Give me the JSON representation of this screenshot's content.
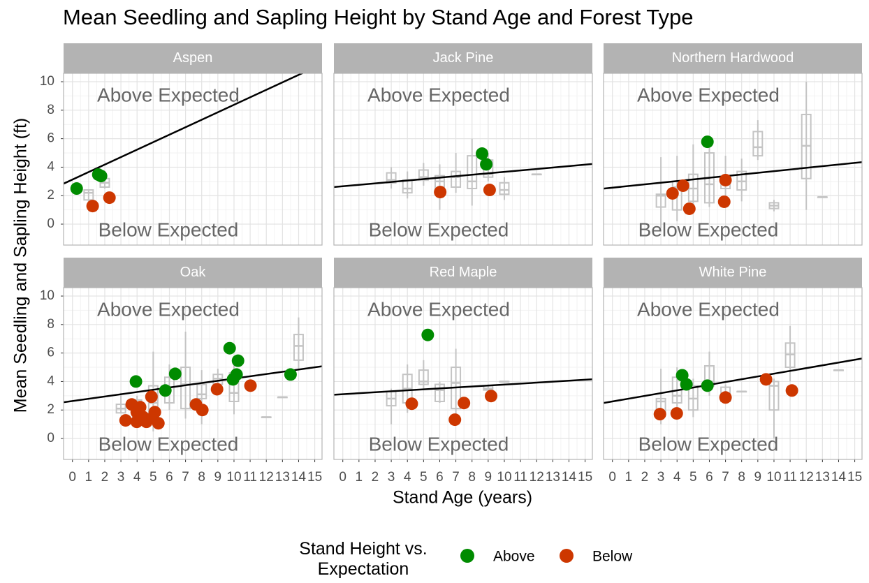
{
  "title": "Mean Seedling and Sapling Height by Stand Age and Forest Type",
  "x_label": "Stand Age (years)",
  "y_label": "Mean Seedling and Sapling Height (ft)",
  "legend_title": "Stand Height vs. Expectation",
  "chart_data": [
    {
      "type": "scatter",
      "title": "Aspen",
      "xlim": [
        -0.55,
        15.45
      ],
      "ylim": [
        -1.47,
        10.59
      ],
      "xticks": [
        0,
        1,
        2,
        3,
        4,
        5,
        6,
        7,
        8,
        9,
        10,
        11,
        12,
        13,
        14,
        15
      ],
      "yticks": [
        0,
        2,
        4,
        6,
        8,
        10
      ],
      "grid": true,
      "annotations": [
        "Above Expected",
        "Below Expected"
      ],
      "trend": {
        "intercept": 3.13,
        "slope": 0.525
      },
      "boxes": {
        "x": [
          1,
          2
        ],
        "low": [
          1.5,
          2.5
        ],
        "q1": [
          1.7,
          2.6
        ],
        "median": [
          2.2,
          2.9
        ],
        "q3": [
          2.4,
          3.2
        ],
        "high": [
          2.4,
          3.3
        ]
      },
      "series": [
        {
          "name": "Above",
          "color": "#008b00",
          "x": [
            0.26,
            1.6,
            1.77
          ],
          "values": [
            2.5,
            3.48,
            3.38
          ]
        },
        {
          "name": "Below",
          "color": "#cd3700",
          "x": [
            1.25,
            2.29
          ],
          "values": [
            1.27,
            1.86
          ]
        }
      ]
    },
    {
      "type": "scatter",
      "title": "Jack Pine",
      "xlim": [
        -0.55,
        15.45
      ],
      "ylim": [
        -1.47,
        10.59
      ],
      "xticks": [
        0,
        1,
        2,
        3,
        4,
        5,
        6,
        7,
        8,
        9,
        10,
        11,
        12,
        13,
        14,
        15
      ],
      "yticks": [
        0,
        2,
        4,
        6,
        8,
        10
      ],
      "grid": true,
      "annotations": [
        "Above Expected",
        "Below Expected"
      ],
      "trend": {
        "intercept": 2.66,
        "slope": 0.101
      },
      "boxes": {
        "x": [
          3,
          4,
          5,
          6,
          7,
          8,
          9,
          10,
          12
        ],
        "low": [
          2.5,
          1.8,
          2.7,
          1.0,
          2.2,
          1.3,
          3.0,
          1.7,
          3.5
        ],
        "q1": [
          2.9,
          2.2,
          3.1,
          2.5,
          2.6,
          2.5,
          3.3,
          2.1,
          3.5
        ],
        "median": [
          3.1,
          2.5,
          3.3,
          3.0,
          3.3,
          3.0,
          3.5,
          2.4,
          3.5
        ],
        "q3": [
          3.6,
          3.1,
          3.8,
          3.4,
          3.7,
          4.8,
          4.5,
          2.9,
          3.5
        ],
        "high": [
          4.0,
          3.7,
          4.3,
          4.2,
          5.0,
          6.0,
          5.0,
          3.3,
          3.5
        ]
      },
      "series": [
        {
          "name": "Above",
          "color": "#008b00",
          "x": [
            8.62,
            8.88
          ],
          "values": [
            4.95,
            4.2
          ]
        },
        {
          "name": "Below",
          "color": "#cd3700",
          "x": [
            6.03,
            9.09
          ],
          "values": [
            2.25,
            2.4
          ]
        }
      ]
    },
    {
      "type": "scatter",
      "title": "Northern Hardwood",
      "xlim": [
        -0.55,
        15.45
      ],
      "ylim": [
        -1.47,
        10.59
      ],
      "xticks": [
        0,
        1,
        2,
        3,
        4,
        5,
        6,
        7,
        8,
        9,
        10,
        11,
        12,
        13,
        14,
        15
      ],
      "yticks": [
        0,
        2,
        4,
        6,
        8,
        10
      ],
      "grid": true,
      "annotations": [
        "Above Expected",
        "Below Expected"
      ],
      "trend": {
        "intercept": 2.56,
        "slope": 0.116
      },
      "boxes": {
        "x": [
          3,
          4,
          5,
          6,
          7,
          8,
          9,
          10,
          12,
          13
        ],
        "low": [
          -0.3,
          0.2,
          0.8,
          1.2,
          2.0,
          1.6,
          4.5,
          0.9,
          1.0,
          1.9
        ],
        "q1": [
          1.2,
          1.0,
          1.6,
          1.5,
          2.5,
          2.4,
          4.8,
          1.1,
          3.2,
          1.9
        ],
        "median": [
          2.0,
          2.6,
          2.5,
          2.8,
          2.9,
          3.0,
          5.4,
          1.3,
          5.5,
          1.9
        ],
        "q3": [
          2.1,
          3.0,
          3.5,
          5.0,
          3.3,
          3.7,
          6.5,
          1.5,
          7.7,
          1.9
        ],
        "high": [
          4.7,
          4.8,
          5.6,
          6.0,
          4.8,
          4.6,
          7.3,
          1.7,
          10.0,
          1.9
        ]
      },
      "series": [
        {
          "name": "Above",
          "color": "#008b00",
          "x": [
            5.88
          ],
          "values": [
            5.78
          ]
        },
        {
          "name": "Below",
          "color": "#cd3700",
          "x": [
            3.72,
            4.37,
            4.76,
            7.0,
            6.92
          ],
          "values": [
            2.16,
            2.7,
            1.08,
            3.09,
            1.57
          ]
        }
      ]
    },
    {
      "type": "scatter",
      "title": "Oak",
      "xlim": [
        -0.55,
        15.45
      ],
      "ylim": [
        -1.47,
        10.59
      ],
      "xticks": [
        0,
        1,
        2,
        3,
        4,
        5,
        6,
        7,
        8,
        9,
        10,
        11,
        12,
        13,
        14,
        15
      ],
      "yticks": [
        0,
        2,
        4,
        6,
        8,
        10
      ],
      "grid": true,
      "annotations": [
        "Above Expected",
        "Below Expected"
      ],
      "trend": {
        "intercept": 2.63,
        "slope": 0.158
      },
      "boxes": {
        "x": [
          3,
          4,
          5,
          6,
          7,
          8,
          9,
          10,
          12,
          13,
          14
        ],
        "low": [
          1.8,
          1.0,
          0.5,
          2.0,
          1.4,
          1.0,
          3.3,
          1.7,
          1.5,
          2.9,
          4.8
        ],
        "q1": [
          1.8,
          1.5,
          1.5,
          2.5,
          2.1,
          2.8,
          3.8,
          2.6,
          1.5,
          2.9,
          5.5
        ],
        "median": [
          2.1,
          2.3,
          2.5,
          3.6,
          3.8,
          3.1,
          4.2,
          3.2,
          1.5,
          2.9,
          6.5
        ],
        "q3": [
          2.4,
          2.7,
          3.7,
          4.3,
          5.0,
          3.8,
          4.5,
          4.6,
          1.5,
          2.9,
          7.3
        ],
        "high": [
          3.2,
          3.0,
          6.1,
          5.2,
          7.5,
          4.8,
          4.9,
          5.5,
          1.5,
          2.9,
          8.5
        ]
      },
      "series": [
        {
          "name": "Above",
          "color": "#008b00",
          "x": [
            3.93,
            5.75,
            6.36,
            9.73,
            10.25,
            9.94,
            10.16,
            13.5
          ],
          "values": [
            4.0,
            3.37,
            4.54,
            6.34,
            5.46,
            4.15,
            4.49,
            4.49
          ]
        },
        {
          "name": "Below",
          "color": "#cd3700",
          "x": [
            3.29,
            3.67,
            3.98,
            3.98,
            4.19,
            4.37,
            4.58,
            4.89,
            5.1,
            4.97,
            5.32,
            7.65,
            8.04,
            8.95,
            11.02
          ],
          "values": [
            1.27,
            2.39,
            1.85,
            1.17,
            2.2,
            1.51,
            1.17,
            2.93,
            1.85,
            1.46,
            1.07,
            2.39,
            2.0,
            3.46,
            3.71
          ]
        }
      ]
    },
    {
      "type": "scatter",
      "title": "Red Maple",
      "xlim": [
        -0.55,
        15.45
      ],
      "ylim": [
        -1.47,
        10.59
      ],
      "xticks": [
        0,
        1,
        2,
        3,
        4,
        5,
        6,
        7,
        8,
        9,
        10,
        11,
        12,
        13,
        14,
        15
      ],
      "yticks": [
        0,
        2,
        4,
        6,
        8,
        10
      ],
      "grid": true,
      "annotations": [
        "Above Expected",
        "Below Expected"
      ],
      "trend": {
        "intercept": 3.11,
        "slope": 0.0675
      },
      "boxes": {
        "x": [
          3,
          4,
          5,
          6,
          7,
          9,
          10
        ],
        "low": [
          1.0,
          1.8,
          3.5,
          2.5,
          1.5,
          3.3,
          4.0
        ],
        "q1": [
          2.3,
          2.5,
          3.8,
          2.6,
          2.1,
          3.4,
          4.0
        ],
        "median": [
          2.8,
          3.5,
          4.0,
          3.4,
          3.9,
          3.5,
          4.0
        ],
        "q3": [
          3.3,
          4.5,
          4.8,
          3.8,
          5.0,
          3.7,
          4.0
        ],
        "high": [
          3.5,
          5.2,
          5.5,
          4.0,
          6.3,
          3.8,
          4.0
        ]
      },
      "series": [
        {
          "name": "Above",
          "color": "#008b00",
          "x": [
            5.26
          ],
          "values": [
            7.27
          ]
        },
        {
          "name": "Below",
          "color": "#cd3700",
          "x": [
            4.27,
            6.94,
            7.5,
            9.18
          ],
          "values": [
            2.44,
            1.32,
            2.49,
            2.98
          ]
        }
      ]
    },
    {
      "type": "scatter",
      "title": "White Pine",
      "xlim": [
        -0.55,
        15.45
      ],
      "ylim": [
        -1.47,
        10.59
      ],
      "xticks": [
        0,
        1,
        2,
        3,
        4,
        5,
        6,
        7,
        8,
        9,
        10,
        11,
        12,
        13,
        14,
        15
      ],
      "yticks": [
        0,
        2,
        4,
        6,
        8,
        10
      ],
      "grid": true,
      "annotations": [
        "Above Expected",
        "Below Expected"
      ],
      "trend": {
        "intercept": 2.6,
        "slope": 0.195
      },
      "boxes": {
        "x": [
          3,
          4,
          5,
          6,
          7,
          8,
          10,
          11,
          14
        ],
        "low": [
          1.0,
          1.5,
          1.5,
          3.0,
          2.5,
          3.3,
          0,
          4.0,
          4.8
        ],
        "q1": [
          1.8,
          2.5,
          2.0,
          3.7,
          2.6,
          3.3,
          2.0,
          5.0,
          4.8
        ],
        "median": [
          2.6,
          3.0,
          2.8,
          4.0,
          3.0,
          3.3,
          3.7,
          5.9,
          4.8
        ],
        "q3": [
          2.8,
          4.3,
          3.7,
          5.1,
          3.6,
          3.3,
          4.0,
          6.7,
          4.8
        ],
        "high": [
          4.9,
          5.0,
          4.2,
          6.1,
          3.8,
          3.3,
          4.2,
          7.9,
          4.8
        ]
      },
      "series": [
        {
          "name": "Above",
          "color": "#008b00",
          "x": [
            4.32,
            4.58,
            5.88
          ],
          "values": [
            4.44,
            3.8,
            3.71
          ]
        },
        {
          "name": "Below",
          "color": "#cd3700",
          "x": [
            2.94,
            3.98,
            7.0,
            9.51,
            11.11
          ],
          "values": [
            1.71,
            1.76,
            2.88,
            4.15,
            3.37
          ]
        }
      ]
    }
  ]
}
